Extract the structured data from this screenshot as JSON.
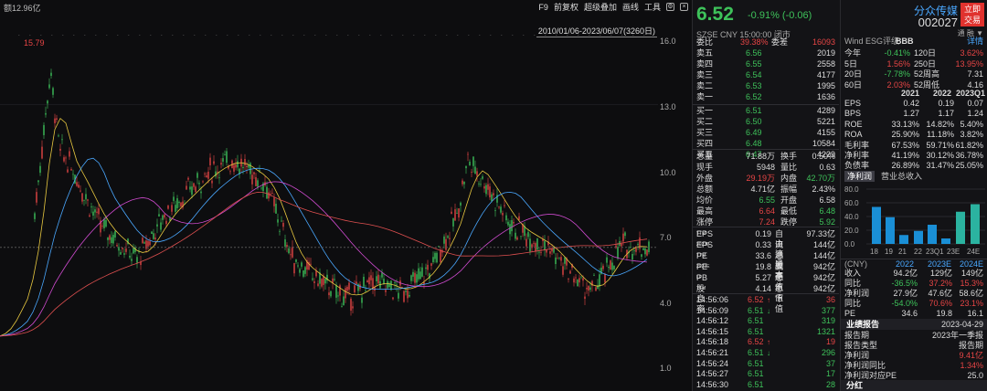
{
  "topbar": {
    "amount": "额12.96亿",
    "tools": [
      "F9",
      "前复权",
      "超级叠加",
      "画线",
      "工具"
    ],
    "range": "2010/01/06-2023/06/07(3260日)",
    "max_label": "15.79"
  },
  "yaxis": [
    "16.0",
    "13.0",
    "10.0",
    "7.0",
    "4.0",
    "1.0"
  ],
  "quote": {
    "price": "6.52",
    "change": "-0.91% (-0.06)",
    "sub": "SZSE  CNY  15:00:00 闭市",
    "ratio_label": "委比",
    "ratio": "39.38%",
    "diff_label": "委差",
    "diff": "16093"
  },
  "book": [
    {
      "l": "卖五",
      "p": "6.56",
      "v": "2019",
      "c": "g"
    },
    {
      "l": "卖四",
      "p": "6.55",
      "v": "2558",
      "c": "g"
    },
    {
      "l": "卖三",
      "p": "6.54",
      "v": "4177",
      "c": "g"
    },
    {
      "l": "卖二",
      "p": "6.53",
      "v": "1995",
      "c": "g"
    },
    {
      "l": "卖一",
      "p": "6.52",
      "v": "1636",
      "c": "g"
    },
    {
      "l": "买一",
      "p": "6.51",
      "v": "4289",
      "c": "g"
    },
    {
      "l": "买二",
      "p": "6.50",
      "v": "5221",
      "c": "g"
    },
    {
      "l": "买三",
      "p": "6.49",
      "v": "4155",
      "c": "g"
    },
    {
      "l": "买四",
      "p": "6.48",
      "v": "10584",
      "c": "g"
    },
    {
      "l": "买五",
      "p": "6.47",
      "v": "4229",
      "c": "g"
    }
  ],
  "stats": [
    {
      "a": "总量",
      "av": "71.88万",
      "ac": "w",
      "b": "换手",
      "bv": "0.50%",
      "bc": "w"
    },
    {
      "a": "现手",
      "av": "5948",
      "ac": "w",
      "b": "量比",
      "bv": "0.63",
      "bc": "w"
    },
    {
      "a": "外盘",
      "av": "29.19万",
      "ac": "r",
      "b": "内盘",
      "bv": "42.70万",
      "bc": "g"
    },
    {
      "a": "总额",
      "av": "4.71亿",
      "ac": "w",
      "b": "振幅",
      "bv": "2.43%",
      "bc": "w"
    },
    {
      "a": "均价",
      "av": "6.55",
      "ac": "g",
      "b": "开盘",
      "bv": "6.58",
      "bc": "w"
    },
    {
      "a": "最高",
      "av": "6.64",
      "ac": "r",
      "b": "最低",
      "bv": "6.48",
      "bc": "g"
    },
    {
      "a": "涨停",
      "av": "7.24",
      "ac": "r",
      "b": "跌停",
      "bv": "5.92",
      "bc": "g"
    }
  ],
  "stats2": [
    {
      "a": "EPS",
      "as": "TTM",
      "av": "0.19",
      "b": "自由流通",
      "bv": "97.33亿"
    },
    {
      "a": "EPS",
      "as": "2023E",
      "av": "0.33",
      "b": "流通股本",
      "bv": "144亿"
    },
    {
      "a": "PE",
      "as": "TTM",
      "av": "33.6",
      "b": "总股本",
      "bv": "144亿"
    },
    {
      "a": "PE",
      "as": "2023E",
      "av": "19.8",
      "b": "流通值",
      "bv": "942亿"
    },
    {
      "a": "PB",
      "as": "LF",
      "av": "5.27",
      "b": "总市值",
      "bs": "1",
      "bv": "942亿"
    },
    {
      "a": "股息率",
      "as": "TTM",
      "av": "4.14",
      "b": "总市值",
      "bs": "2",
      "bv": "942亿"
    }
  ],
  "ticks": [
    {
      "t": "14:56:06",
      "p": "6.52",
      "d": "↑",
      "v": "36",
      "c": "r"
    },
    {
      "t": "14:56:09",
      "p": "6.51",
      "d": "↓",
      "v": "377",
      "c": "g"
    },
    {
      "t": "14:56:12",
      "p": "6.51",
      "d": "",
      "v": "319",
      "c": "g"
    },
    {
      "t": "14:56:15",
      "p": "6.51",
      "d": "",
      "v": "1321",
      "c": "g"
    },
    {
      "t": "14:56:18",
      "p": "6.52",
      "d": "↑",
      "v": "19",
      "c": "r"
    },
    {
      "t": "14:56:21",
      "p": "6.51",
      "d": "↓",
      "v": "296",
      "c": "g"
    },
    {
      "t": "14:56:24",
      "p": "6.51",
      "d": "",
      "v": "37",
      "c": "g"
    },
    {
      "t": "14:56:27",
      "p": "6.51",
      "d": "",
      "v": "17",
      "c": "g"
    },
    {
      "t": "14:56:30",
      "p": "6.51",
      "d": "",
      "v": "28",
      "c": "g"
    }
  ],
  "fund": {
    "name": "分众传媒",
    "code": "002027",
    "trade": [
      "立即",
      "交易"
    ],
    "tip": "通  融  ▼",
    "esg_label": "Wind ESG评级",
    "esg": "BBB",
    "detail": "详情",
    "perf": [
      {
        "a": "今年",
        "av": "-0.41%",
        "ac": "g",
        "b": "120日",
        "bv": "3.62%",
        "bc": "r"
      },
      {
        "a": "5日",
        "av": "1.56%",
        "ac": "r",
        "b": "250日",
        "bv": "13.95%",
        "bc": "r"
      },
      {
        "a": "20日",
        "av": "-7.78%",
        "ac": "g",
        "b": "52周高",
        "bv": "7.31",
        "bc": "w"
      },
      {
        "a": "60日",
        "av": "2.03%",
        "ac": "r",
        "b": "52周低",
        "bv": "4.16",
        "bc": "w"
      }
    ],
    "years": [
      "2021",
      "2022",
      "2023Q1"
    ],
    "fin": [
      {
        "l": "EPS",
        "v": [
          "0.42",
          "0.19",
          "0.07"
        ]
      },
      {
        "l": "BPS",
        "v": [
          "1.27",
          "1.17",
          "1.24"
        ]
      },
      {
        "l": "ROE",
        "v": [
          "33.13%",
          "14.82%",
          "5.40%"
        ]
      },
      {
        "l": "ROA",
        "v": [
          "25.90%",
          "11.18%",
          "3.82%"
        ]
      },
      {
        "l": "毛利率",
        "v": [
          "67.53%",
          "59.71%",
          "61.82%"
        ]
      },
      {
        "l": "净利率",
        "v": [
          "41.19%",
          "30.12%",
          "36.78%"
        ]
      },
      {
        "l": "负债率",
        "v": [
          "26.89%",
          "31.47%",
          "25.05%"
        ]
      }
    ],
    "tabs": [
      "净利润",
      "营业总收入"
    ],
    "bar_y": [
      "80.0",
      "60.0",
      "40.0",
      "20.0",
      "0.0"
    ],
    "bar_x": [
      "18",
      "19",
      "21",
      "22",
      "23Q1",
      "23E",
      "24E"
    ],
    "fc_unit": "(CNY)",
    "fc_years": [
      "2022",
      "2023E",
      "2024E"
    ],
    "fc": [
      {
        "l": "收入",
        "v": [
          "94.2亿",
          "129亿",
          "149亿"
        ],
        "c": [
          "w",
          "w",
          "w"
        ]
      },
      {
        "l": "同比",
        "v": [
          "-36.5%",
          "37.2%",
          "15.3%"
        ],
        "c": [
          "g",
          "r",
          "r"
        ]
      },
      {
        "l": "净利润",
        "v": [
          "27.9亿",
          "47.6亿",
          "58.6亿"
        ],
        "c": [
          "w",
          "w",
          "w"
        ]
      },
      {
        "l": "同比",
        "v": [
          "-54.0%",
          "70.6%",
          "23.1%"
        ],
        "c": [
          "g",
          "r",
          "r"
        ]
      },
      {
        "l": "PE",
        "v": [
          "34.6",
          "19.8",
          "16.1"
        ],
        "c": [
          "w",
          "w",
          "w"
        ]
      }
    ],
    "report_title": "业绩报告",
    "report_date": "2023-04-29",
    "report": [
      {
        "l": "报告期",
        "v": "2023年一季报",
        "c": "w"
      },
      {
        "l": "报告类型",
        "v": "报告期",
        "c": "w"
      },
      {
        "l": "净利润",
        "v": "9.41亿",
        "c": "r"
      },
      {
        "l": "净利润同比",
        "v": "1.34%",
        "c": "r"
      },
      {
        "l": "净利润对应PE",
        "v": "25.0",
        "c": "w"
      }
    ],
    "div": "分红"
  }
}
